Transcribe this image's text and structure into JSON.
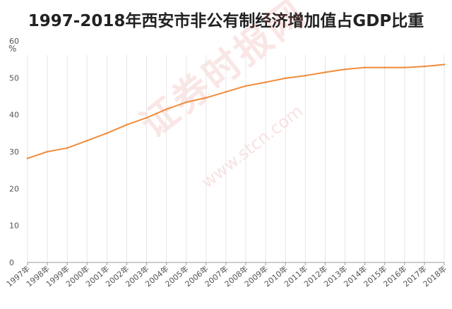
{
  "title": "1997-2018年西安市非公有制经济增加值占GDP比重",
  "unit": "%",
  "watermark": {
    "line1": "证券时报网",
    "line2": "www.stcn.com"
  },
  "colors": {
    "line": "#f08c3c",
    "grid": "#e6e6e6",
    "axis": "#999999",
    "text": "#555555"
  },
  "chart_data": {
    "type": "line",
    "title": "1997-2018年西安市非公有制经济增加值占GDP比重",
    "xlabel": "",
    "ylabel": "%",
    "ylim": [
      0,
      60
    ],
    "yticks": [
      0,
      10,
      20,
      30,
      40,
      50,
      60
    ],
    "grid": true,
    "categories": [
      "1997年",
      "1998年",
      "1999年",
      "2000年",
      "2001年",
      "2002年",
      "2003年",
      "2004年",
      "2005年",
      "2006年",
      "2007年",
      "2008年",
      "2009年",
      "2010年",
      "2011年",
      "2012年",
      "2013年",
      "2014年",
      "2015年",
      "2016年",
      "2017年",
      "2018年"
    ],
    "series": [
      {
        "values": [
          28.2,
          30.0,
          31.0,
          33.0,
          35.0,
          37.3,
          39.2,
          41.5,
          43.4,
          44.6,
          46.2,
          47.8,
          48.8,
          49.9,
          50.6,
          51.5,
          52.3,
          52.8,
          52.8,
          52.8,
          53.1,
          53.6
        ]
      }
    ]
  }
}
